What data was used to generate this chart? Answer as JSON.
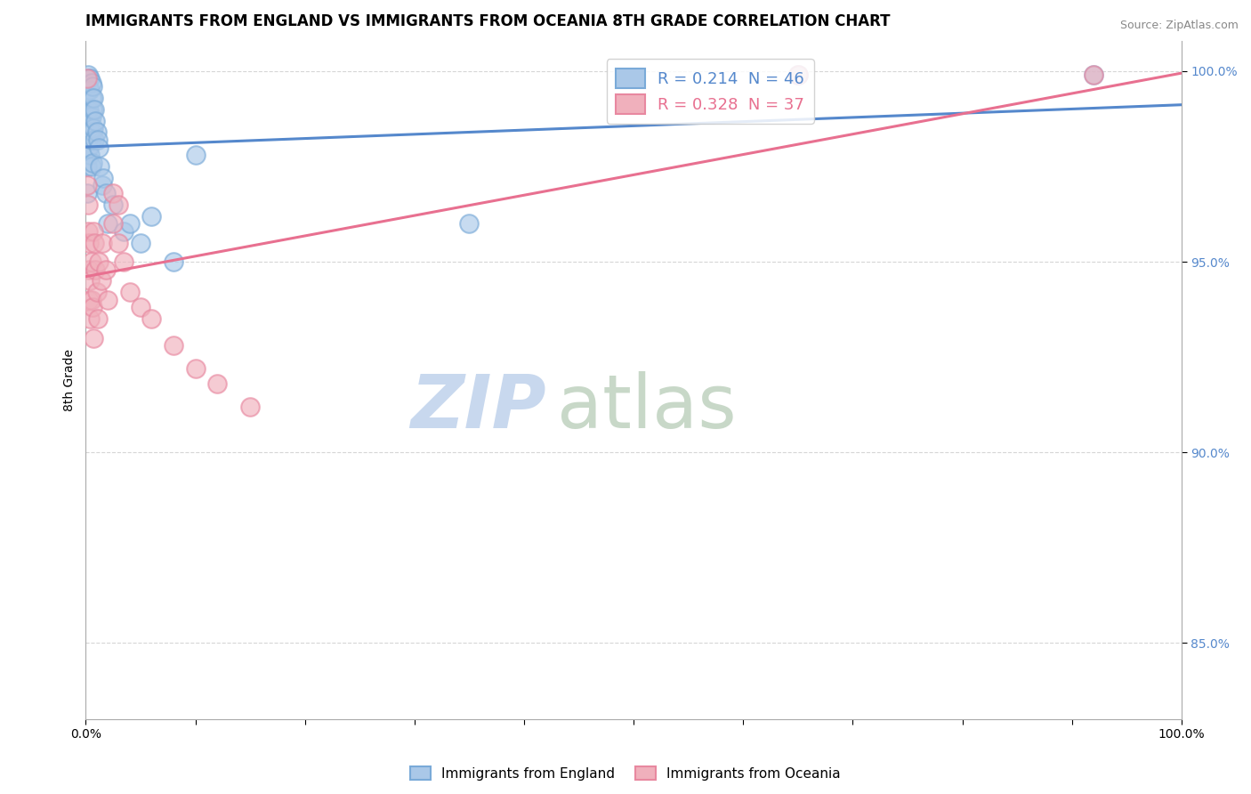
{
  "title": "IMMIGRANTS FROM ENGLAND VS IMMIGRANTS FROM OCEANIA 8TH GRADE CORRELATION CHART",
  "source": "Source: ZipAtlas.com",
  "ylabel": "8th Grade",
  "xlim": [
    0.0,
    1.0
  ],
  "ylim": [
    0.83,
    1.008
  ],
  "yticks": [
    0.85,
    0.9,
    0.95,
    1.0
  ],
  "ytick_labels": [
    "85.0%",
    "90.0%",
    "95.0%",
    "100.0%"
  ],
  "xtick_labels": [
    "0.0%",
    "100.0%"
  ],
  "legend_blue_R": 0.214,
  "legend_blue_N": 46,
  "legend_pink_R": 0.328,
  "legend_pink_N": 37,
  "watermark_zip": "ZIP",
  "watermark_atlas": "atlas",
  "blue_scatter_x": [
    0.001,
    0.001,
    0.002,
    0.002,
    0.002,
    0.003,
    0.003,
    0.003,
    0.003,
    0.003,
    0.004,
    0.004,
    0.004,
    0.004,
    0.005,
    0.005,
    0.005,
    0.005,
    0.005,
    0.006,
    0.006,
    0.006,
    0.006,
    0.007,
    0.007,
    0.008,
    0.008,
    0.009,
    0.01,
    0.011,
    0.012,
    0.013,
    0.015,
    0.016,
    0.018,
    0.02,
    0.025,
    0.035,
    0.04,
    0.05,
    0.06,
    0.08,
    0.1,
    0.35,
    0.65,
    0.92
  ],
  "blue_scatter_y": [
    0.975,
    0.968,
    0.999,
    0.99,
    0.98,
    0.998,
    0.995,
    0.99,
    0.985,
    0.98,
    0.998,
    0.995,
    0.988,
    0.978,
    0.997,
    0.993,
    0.988,
    0.982,
    0.975,
    0.996,
    0.99,
    0.984,
    0.976,
    0.993,
    0.985,
    0.99,
    0.982,
    0.987,
    0.984,
    0.982,
    0.98,
    0.975,
    0.97,
    0.972,
    0.968,
    0.96,
    0.965,
    0.958,
    0.96,
    0.955,
    0.962,
    0.95,
    0.978,
    0.96,
    0.999,
    0.999
  ],
  "pink_scatter_x": [
    0.001,
    0.001,
    0.002,
    0.002,
    0.003,
    0.003,
    0.003,
    0.004,
    0.004,
    0.005,
    0.005,
    0.006,
    0.007,
    0.007,
    0.008,
    0.009,
    0.01,
    0.011,
    0.012,
    0.014,
    0.015,
    0.018,
    0.02,
    0.025,
    0.03,
    0.035,
    0.04,
    0.05,
    0.06,
    0.08,
    0.1,
    0.12,
    0.15,
    0.025,
    0.03,
    0.65,
    0.92
  ],
  "pink_scatter_y": [
    0.998,
    0.97,
    0.965,
    0.958,
    0.955,
    0.948,
    0.94,
    0.945,
    0.935,
    0.95,
    0.94,
    0.938,
    0.93,
    0.958,
    0.955,
    0.948,
    0.942,
    0.935,
    0.95,
    0.945,
    0.955,
    0.948,
    0.94,
    0.96,
    0.955,
    0.95,
    0.942,
    0.938,
    0.935,
    0.928,
    0.922,
    0.918,
    0.912,
    0.968,
    0.965,
    0.999,
    0.999
  ],
  "blue_line_color": "#5588cc",
  "pink_line_color": "#e87090",
  "blue_marker_facecolor": "#aac8e8",
  "blue_marker_edgecolor": "#7aaad8",
  "pink_marker_facecolor": "#f0b0bc",
  "pink_marker_edgecolor": "#e888a0",
  "grid_color": "#cccccc",
  "background_color": "#ffffff",
  "title_fontsize": 12,
  "axis_label_fontsize": 10,
  "tick_fontsize": 10,
  "ytick_color": "#5588cc",
  "watermark_color_zip": "#c8d8ee",
  "watermark_color_atlas": "#c8d8c8",
  "watermark_fontsize": 60
}
